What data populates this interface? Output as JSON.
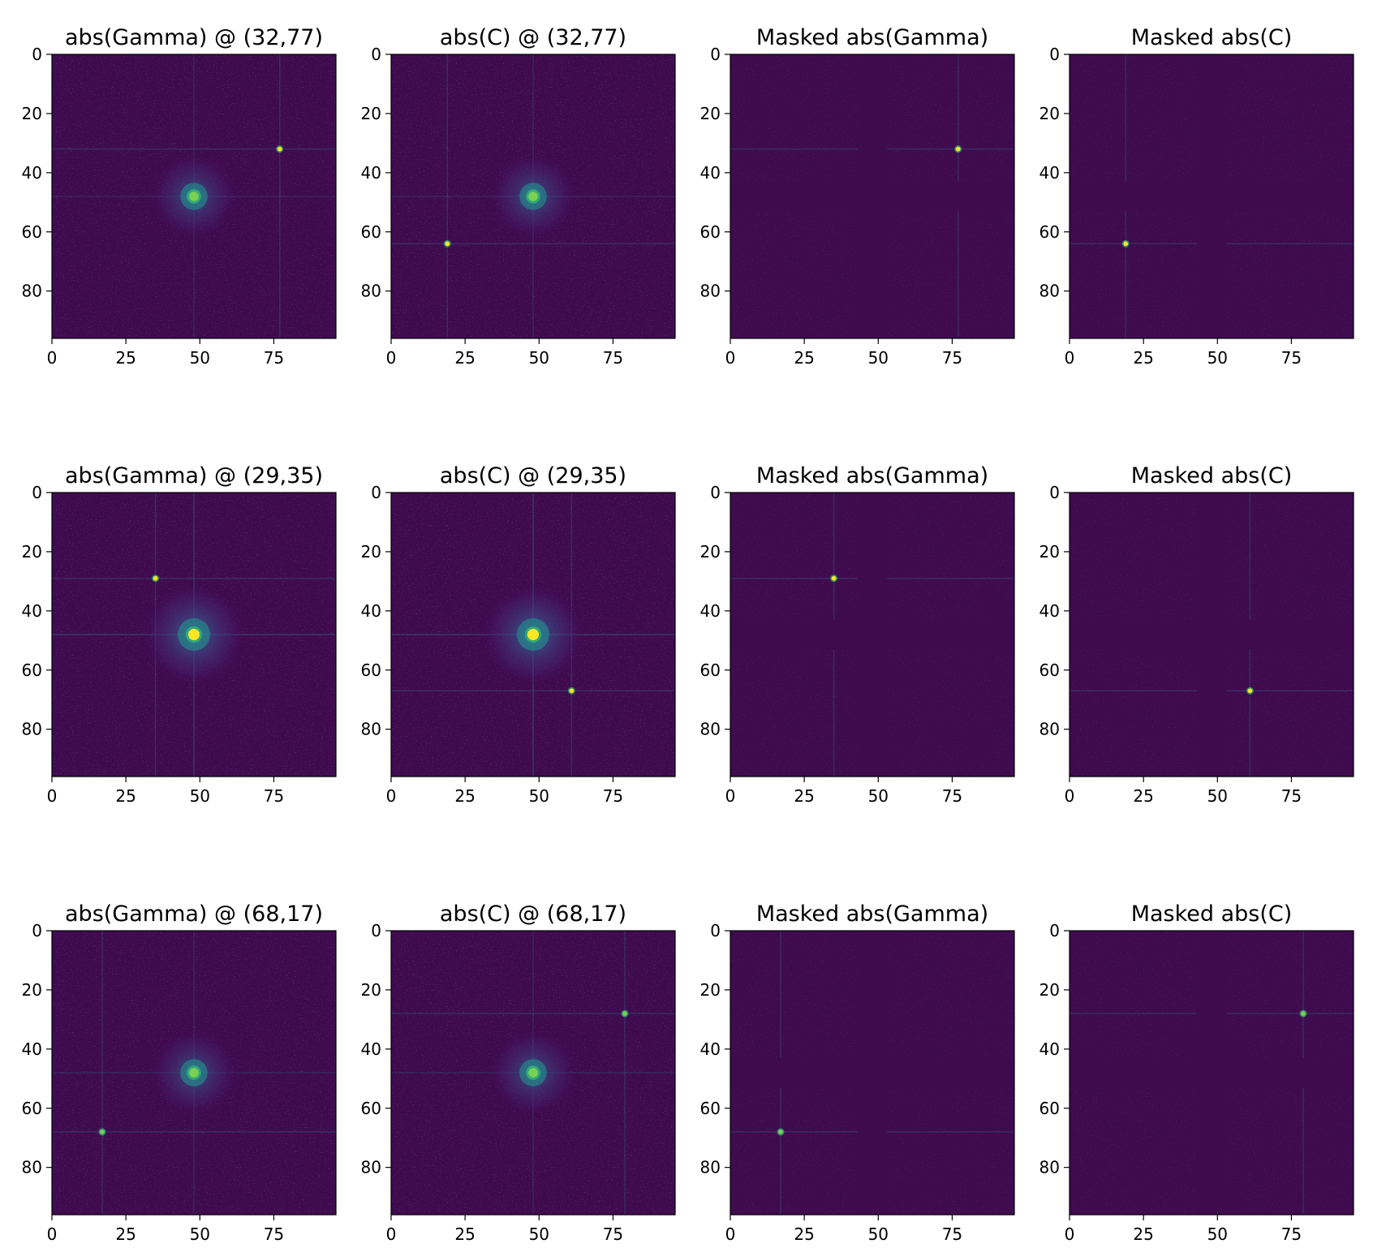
{
  "colors": {
    "background": "#440154",
    "plot_bg": "#3f0a4e",
    "peak_high": "#fde725",
    "peak_mid": "#35b779",
    "halo": "#31688e"
  },
  "chart_data": [
    {
      "type": "heatmap",
      "title": "abs(Gamma) @ (32,77)",
      "row": 0,
      "col": 0,
      "xlim": [
        0,
        96
      ],
      "ylim": [
        96,
        0
      ],
      "xticks": [
        0,
        25,
        50,
        75
      ],
      "yticks": [
        0,
        20,
        40,
        60,
        80
      ],
      "peaks": [
        {
          "x": 77,
          "y": 32,
          "intensity": "high"
        },
        {
          "x": 48,
          "y": 48,
          "intensity": "center"
        }
      ],
      "center_strength": 0.6,
      "masked": false,
      "cross_lines": [
        {
          "orient": "h",
          "pos": 32
        },
        {
          "orient": "v",
          "pos": 77
        }
      ]
    },
    {
      "type": "heatmap",
      "title": "abs(C) @ (32,77)",
      "row": 0,
      "col": 1,
      "xlim": [
        0,
        96
      ],
      "ylim": [
        96,
        0
      ],
      "xticks": [
        0,
        25,
        50,
        75
      ],
      "yticks": [
        0,
        20,
        40,
        60,
        80
      ],
      "peaks": [
        {
          "x": 19,
          "y": 64,
          "intensity": "high"
        },
        {
          "x": 48,
          "y": 48,
          "intensity": "center"
        }
      ],
      "center_strength": 0.6,
      "masked": false,
      "cross_lines": [
        {
          "orient": "h",
          "pos": 64
        },
        {
          "orient": "v",
          "pos": 19
        }
      ]
    },
    {
      "type": "heatmap",
      "title": "Masked abs(Gamma)",
      "row": 0,
      "col": 2,
      "xlim": [
        0,
        96
      ],
      "ylim": [
        96,
        0
      ],
      "xticks": [
        0,
        25,
        50,
        75
      ],
      "yticks": [
        0,
        20,
        40,
        60,
        80
      ],
      "peaks": [
        {
          "x": 77,
          "y": 32,
          "intensity": "high"
        }
      ],
      "center_strength": 0,
      "masked": true,
      "cross_lines": [
        {
          "orient": "h",
          "pos": 32
        },
        {
          "orient": "v",
          "pos": 77
        }
      ]
    },
    {
      "type": "heatmap",
      "title": "Masked abs(C)",
      "row": 0,
      "col": 3,
      "xlim": [
        0,
        96
      ],
      "ylim": [
        96,
        0
      ],
      "xticks": [
        0,
        25,
        50,
        75
      ],
      "yticks": [
        0,
        20,
        40,
        60,
        80
      ],
      "peaks": [
        {
          "x": 19,
          "y": 64,
          "intensity": "high"
        }
      ],
      "center_strength": 0,
      "masked": true,
      "cross_lines": [
        {
          "orient": "h",
          "pos": 64
        },
        {
          "orient": "v",
          "pos": 19
        }
      ]
    },
    {
      "type": "heatmap",
      "title": "abs(Gamma) @ (29,35)",
      "row": 1,
      "col": 0,
      "xlim": [
        0,
        96
      ],
      "ylim": [
        96,
        0
      ],
      "xticks": [
        0,
        25,
        50,
        75
      ],
      "yticks": [
        0,
        20,
        40,
        60,
        80
      ],
      "peaks": [
        {
          "x": 35,
          "y": 29,
          "intensity": "high"
        },
        {
          "x": 48,
          "y": 48,
          "intensity": "center"
        }
      ],
      "center_strength": 1.0,
      "masked": false,
      "cross_lines": [
        {
          "orient": "h",
          "pos": 29
        },
        {
          "orient": "v",
          "pos": 35
        }
      ]
    },
    {
      "type": "heatmap",
      "title": "abs(C) @ (29,35)",
      "row": 1,
      "col": 1,
      "xlim": [
        0,
        96
      ],
      "ylim": [
        96,
        0
      ],
      "xticks": [
        0,
        25,
        50,
        75
      ],
      "yticks": [
        0,
        20,
        40,
        60,
        80
      ],
      "peaks": [
        {
          "x": 61,
          "y": 67,
          "intensity": "high"
        },
        {
          "x": 48,
          "y": 48,
          "intensity": "center"
        }
      ],
      "center_strength": 1.0,
      "masked": false,
      "cross_lines": [
        {
          "orient": "h",
          "pos": 67
        },
        {
          "orient": "v",
          "pos": 61
        }
      ]
    },
    {
      "type": "heatmap",
      "title": "Masked abs(Gamma)",
      "row": 1,
      "col": 2,
      "xlim": [
        0,
        96
      ],
      "ylim": [
        96,
        0
      ],
      "xticks": [
        0,
        25,
        50,
        75
      ],
      "yticks": [
        0,
        20,
        40,
        60,
        80
      ],
      "peaks": [
        {
          "x": 35,
          "y": 29,
          "intensity": "high"
        }
      ],
      "center_strength": 0,
      "masked": true,
      "cross_lines": [
        {
          "orient": "h",
          "pos": 29
        },
        {
          "orient": "v",
          "pos": 35
        }
      ]
    },
    {
      "type": "heatmap",
      "title": "Masked abs(C)",
      "row": 1,
      "col": 3,
      "xlim": [
        0,
        96
      ],
      "ylim": [
        96,
        0
      ],
      "xticks": [
        0,
        25,
        50,
        75
      ],
      "yticks": [
        0,
        20,
        40,
        60,
        80
      ],
      "peaks": [
        {
          "x": 61,
          "y": 67,
          "intensity": "high"
        }
      ],
      "center_strength": 0,
      "masked": true,
      "cross_lines": [
        {
          "orient": "h",
          "pos": 67
        },
        {
          "orient": "v",
          "pos": 61
        }
      ]
    },
    {
      "type": "heatmap",
      "title": "abs(Gamma) @ (68,17)",
      "row": 2,
      "col": 0,
      "xlim": [
        0,
        96
      ],
      "ylim": [
        96,
        0
      ],
      "xticks": [
        0,
        25,
        50,
        75
      ],
      "yticks": [
        0,
        20,
        40,
        60,
        80
      ],
      "peaks": [
        {
          "x": 17,
          "y": 68,
          "intensity": "mid"
        },
        {
          "x": 48,
          "y": 48,
          "intensity": "center"
        }
      ],
      "center_strength": 0.6,
      "masked": false,
      "cross_lines": [
        {
          "orient": "h",
          "pos": 68
        },
        {
          "orient": "v",
          "pos": 17
        }
      ]
    },
    {
      "type": "heatmap",
      "title": "abs(C) @ (68,17)",
      "row": 2,
      "col": 1,
      "xlim": [
        0,
        96
      ],
      "ylim": [
        96,
        0
      ],
      "xticks": [
        0,
        25,
        50,
        75
      ],
      "yticks": [
        0,
        20,
        40,
        60,
        80
      ],
      "peaks": [
        {
          "x": 79,
          "y": 28,
          "intensity": "mid"
        },
        {
          "x": 48,
          "y": 48,
          "intensity": "center"
        }
      ],
      "center_strength": 0.6,
      "masked": false,
      "cross_lines": [
        {
          "orient": "h",
          "pos": 28
        },
        {
          "orient": "v",
          "pos": 79
        }
      ]
    },
    {
      "type": "heatmap",
      "title": "Masked abs(Gamma)",
      "row": 2,
      "col": 2,
      "xlim": [
        0,
        96
      ],
      "ylim": [
        96,
        0
      ],
      "xticks": [
        0,
        25,
        50,
        75
      ],
      "yticks": [
        0,
        20,
        40,
        60,
        80
      ],
      "peaks": [
        {
          "x": 17,
          "y": 68,
          "intensity": "mid"
        }
      ],
      "center_strength": 0,
      "masked": true,
      "cross_lines": [
        {
          "orient": "h",
          "pos": 68
        },
        {
          "orient": "v",
          "pos": 17
        }
      ]
    },
    {
      "type": "heatmap",
      "title": "Masked abs(C)",
      "row": 2,
      "col": 3,
      "xlim": [
        0,
        96
      ],
      "ylim": [
        96,
        0
      ],
      "xticks": [
        0,
        25,
        50,
        75
      ],
      "yticks": [
        0,
        20,
        40,
        60,
        80
      ],
      "peaks": [
        {
          "x": 79,
          "y": 28,
          "intensity": "mid"
        }
      ],
      "center_strength": 0,
      "masked": true,
      "cross_lines": [
        {
          "orient": "h",
          "pos": 28
        },
        {
          "orient": "v",
          "pos": 79
        }
      ]
    }
  ]
}
